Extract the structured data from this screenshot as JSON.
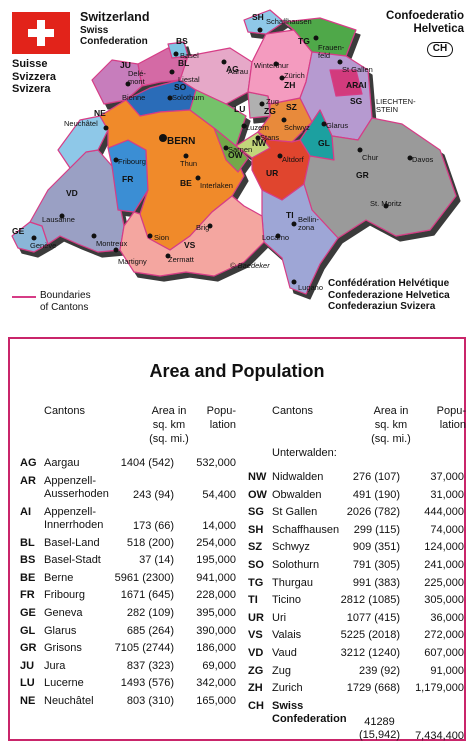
{
  "header": {
    "title": "Switzerland",
    "subtitle_lines": [
      "Swiss",
      "Confederation"
    ],
    "languages": [
      "Suisse",
      "Svizzera",
      "Svizera"
    ],
    "latin_lines": [
      "Confoederatio",
      "Helvetica"
    ],
    "badge": "CH",
    "other_names": [
      "Confédération Helvétique",
      "Confederazione Helvetica",
      "Confederaziun Svizera"
    ]
  },
  "legend": {
    "label_lines": [
      "Boundaries",
      "of Cantons"
    ],
    "color": "#d63c86"
  },
  "map": {
    "canton_codes": [
      "SH",
      "TG",
      "ZH",
      "BS",
      "BL",
      "JU",
      "AG",
      "SO",
      "AR",
      "AI",
      "SG",
      "LU",
      "ZG",
      "SZ",
      "GL",
      "NE",
      "BE",
      "OW",
      "NW",
      "UR",
      "FR",
      "GR",
      "VD",
      "GE",
      "VS",
      "TI"
    ],
    "cities": [
      "Schaffhausen",
      "Frauen-feld",
      "Basel",
      "Aarau",
      "Winterthur",
      "Zürich",
      "Delé-mont",
      "Liestal",
      "Bühl/Bienne",
      "Solothurn",
      "St. Gallen",
      "Neuchâtel",
      "Luzern",
      "Zug",
      "Schwyz",
      "Glarus",
      "BERN",
      "Stans",
      "Sarnen",
      "Altdorf",
      "Fribourg",
      "Thun",
      "Interlaken",
      "Chur",
      "Davos",
      "Lausanne",
      "Montreux",
      "Genève",
      "Sion",
      "Brig",
      "Bellin-zona",
      "Locarno",
      "Lugano",
      "St. Moritz",
      "Zermatt",
      "Martigny"
    ],
    "neighbor_label": [
      "LIECHTEN-",
      "STEIN"
    ],
    "credit": "© Baedeker",
    "colors": {
      "sea": "#ffffff",
      "relief": "#3a3a3a",
      "vaud": "#9aa0c4",
      "geneva": "#8ab6d8",
      "valais": "#f4a6a0",
      "bern": "#f08a2c",
      "fribourg": "#3a8ed4",
      "neuchatel": "#8ec8e8",
      "jura": "#c77dbc",
      "grisons": "#9a9a9a",
      "ticino": "#9ea6d6",
      "uri": "#e0452d",
      "zurich": "#f49bbf",
      "stgallen": "#b69ad0",
      "thurgau": "#4fa84a",
      "schaff": "#8fc8e8",
      "aargau": "#e6a8c8",
      "lucerne": "#74c26a",
      "solothurn": "#2b6cb8",
      "basel": "#7fc4e4",
      "baselland": "#d46aa5",
      "glarus": "#1fa0a0",
      "schwyz": "#e88a3a",
      "obwalden": "#73a84a",
      "nidwalden": "#c2d67a",
      "zug": "#b0b0b0",
      "appenzell": "#d23b7d"
    }
  },
  "table": {
    "title": "Area and Population",
    "headers": {
      "canton": "Cantons",
      "area": [
        "Area in",
        "sq. km",
        "(sq. mi.)"
      ],
      "pop": [
        "Popu-",
        "lation"
      ]
    },
    "left_rows": [
      {
        "code": "AG",
        "name": [
          "Aargau"
        ],
        "area": "1404 (542)",
        "pop": "532,000"
      },
      {
        "code": "AR",
        "name": [
          "Appenzell-",
          "Ausserhoden"
        ],
        "area": "243 (94)",
        "pop": "54,400"
      },
      {
        "code": "AI",
        "name": [
          "Appenzell-",
          "Innerrhoden"
        ],
        "area": "173 (66)",
        "pop": "14,000"
      },
      {
        "code": "BL",
        "name": [
          "Basel-Land"
        ],
        "area": "518 (200)",
        "pop": "254,000"
      },
      {
        "code": "BS",
        "name": [
          "Basel-Stadt"
        ],
        "area": "37 (14)",
        "pop": "195,000"
      },
      {
        "code": "BE",
        "name": [
          "Berne"
        ],
        "area": "5961 (2300)",
        "pop": "941,000"
      },
      {
        "code": "FR",
        "name": [
          "Fribourg"
        ],
        "area": "1671 (645)",
        "pop": "228,000"
      },
      {
        "code": "GE",
        "name": [
          "Geneva"
        ],
        "area": "282 (109)",
        "pop": "395,000"
      },
      {
        "code": "GL",
        "name": [
          "Glarus"
        ],
        "area": "685 (264)",
        "pop": "390,000"
      },
      {
        "code": "GR",
        "name": [
          "Grisons"
        ],
        "area": "7105 (2744)",
        "pop": "186,000"
      },
      {
        "code": "JU",
        "name": [
          "Jura"
        ],
        "area": "837 (323)",
        "pop": "69,000"
      },
      {
        "code": "LU",
        "name": [
          "Lucerne"
        ],
        "area": "1493 (576)",
        "pop": "342,000"
      },
      {
        "code": "NE",
        "name": [
          "Neuchâtel"
        ],
        "area": "803 (310)",
        "pop": "165,000"
      }
    ],
    "unterwalden": "Unterwalden:",
    "right_rows": [
      {
        "code": "NW",
        "name": [
          "Nidwalden"
        ],
        "area": "276 (107)",
        "pop": "37,000"
      },
      {
        "code": "OW",
        "name": [
          "Obwalden"
        ],
        "area": "491 (190)",
        "pop": "31,000"
      },
      {
        "code": "SG",
        "name": [
          "St Gallen"
        ],
        "area": "2026 (782)",
        "pop": "444,000"
      },
      {
        "code": "SH",
        "name": [
          "Schaffhausen"
        ],
        "area": "299 (115)",
        "pop": "74,000"
      },
      {
        "code": "SZ",
        "name": [
          "Schwyz"
        ],
        "area": "909 (351)",
        "pop": "124,000"
      },
      {
        "code": "SO",
        "name": [
          "Solothurn"
        ],
        "area": "791 (305)",
        "pop": "241,000"
      },
      {
        "code": "TG",
        "name": [
          "Thurgau"
        ],
        "area": "991 (383)",
        "pop": "225,000"
      },
      {
        "code": "TI",
        "name": [
          "Ticino"
        ],
        "area": "2812 (1085)",
        "pop": "305,000"
      },
      {
        "code": "UR",
        "name": [
          "Uri"
        ],
        "area": "1077 (415)",
        "pop": "36,000"
      },
      {
        "code": "VS",
        "name": [
          "Valais"
        ],
        "area": "5225 (2018)",
        "pop": "272,000"
      },
      {
        "code": "VD",
        "name": [
          "Vaud"
        ],
        "area": "3212 (1240)",
        "pop": "607,000"
      },
      {
        "code": "ZG",
        "name": [
          "Zug"
        ],
        "area": "239 (92)",
        "pop": "91,000"
      },
      {
        "code": "ZH",
        "name": [
          "Zurich"
        ],
        "area": "1729 (668)",
        "pop": "1,179,000"
      }
    ],
    "total": {
      "code": "CH",
      "name": [
        "Swiss",
        "Confederation"
      ],
      "area": [
        "41289",
        "(15,942)"
      ],
      "pop": "7,434,400"
    }
  }
}
